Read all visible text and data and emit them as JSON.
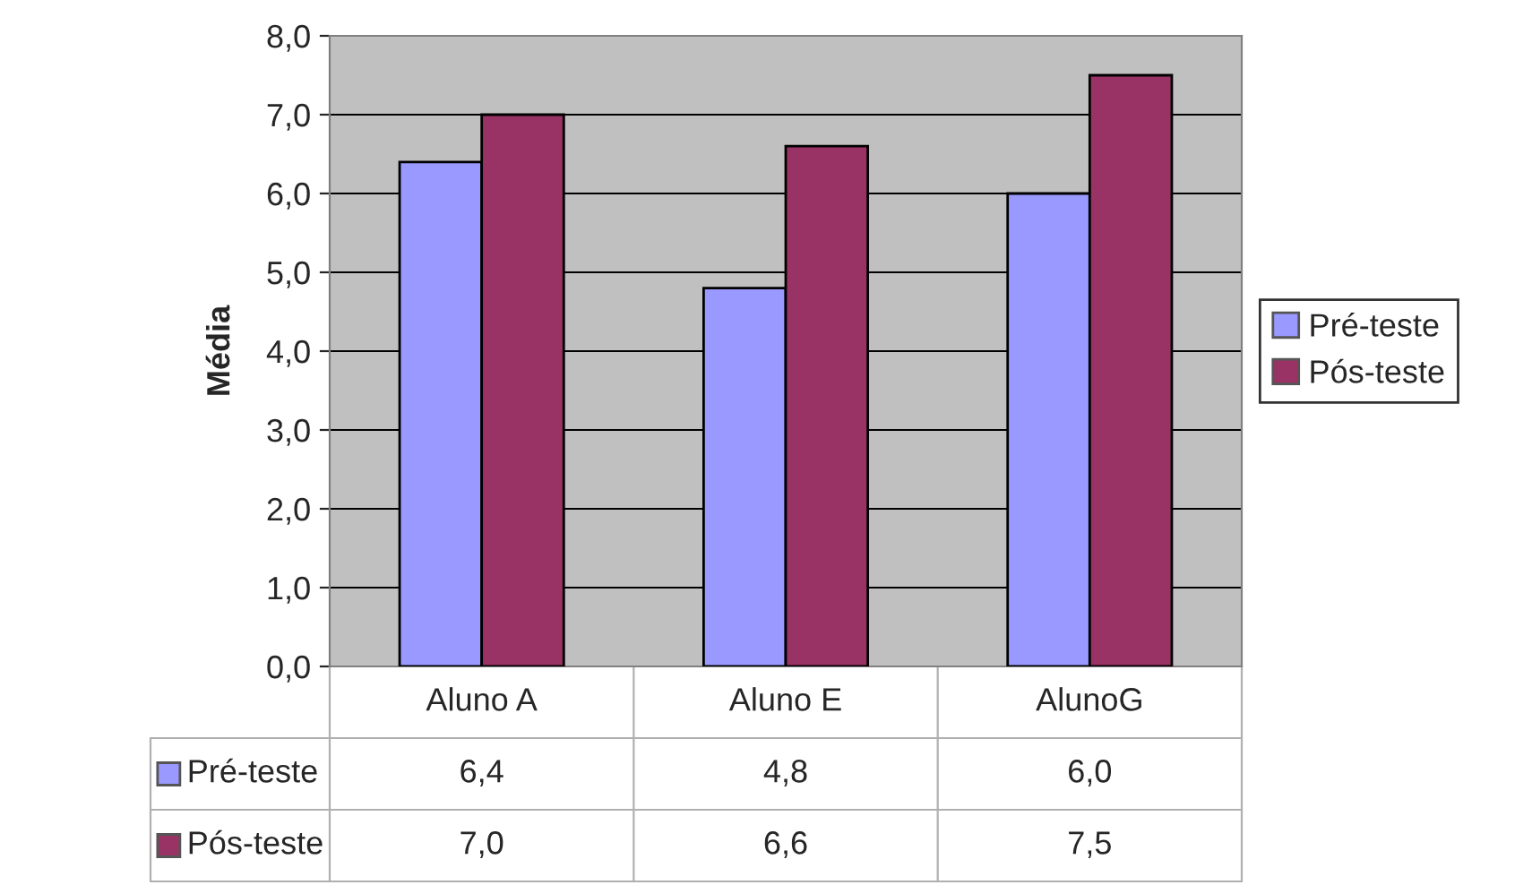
{
  "chart_data": {
    "type": "bar",
    "ylabel": "Média",
    "categories": [
      "Aluno A",
      "Aluno E",
      "AlunoG"
    ],
    "series": [
      {
        "name": "Pré-teste",
        "color": "#9999ff",
        "values": [
          6.4,
          4.8,
          6.0
        ],
        "value_labels": [
          "6,4",
          "4,8",
          "6,0"
        ]
      },
      {
        "name": "Pós-teste",
        "color": "#993366",
        "values": [
          7.0,
          6.6,
          7.5
        ],
        "value_labels": [
          "7,0",
          "6,6",
          "7,5"
        ]
      }
    ],
    "ylim": [
      0,
      8
    ],
    "yticks": [
      {
        "value": 0,
        "label": "0,0"
      },
      {
        "value": 1,
        "label": "1,0"
      },
      {
        "value": 2,
        "label": "2,0"
      },
      {
        "value": 3,
        "label": "3,0"
      },
      {
        "value": 4,
        "label": "4,0"
      },
      {
        "value": 5,
        "label": "5,0"
      },
      {
        "value": 6,
        "label": "6,0"
      },
      {
        "value": 7,
        "label": "7,0"
      },
      {
        "value": 8,
        "label": "8,0"
      }
    ],
    "grid": "y",
    "legend": "right"
  }
}
